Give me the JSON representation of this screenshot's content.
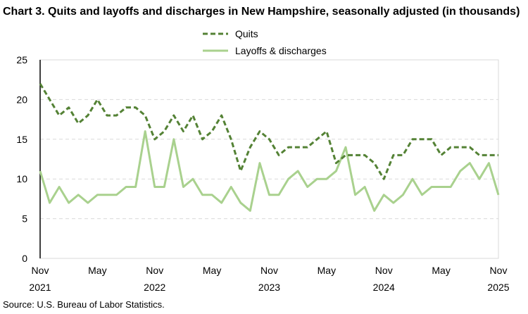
{
  "chart_data": {
    "type": "line",
    "title": "Chart 3. Quits and layoffs and discharges in New Hampshire, seasonally adjusted (in thousands)",
    "source": "Source: U.S. Bureau of Labor Statistics.",
    "x_start": "Nov 2021",
    "x_end": "Nov 2025",
    "x_tick_labels": [
      [
        "Nov",
        "2021"
      ],
      [
        "May",
        ""
      ],
      [
        "Nov",
        "2022"
      ],
      [
        "May",
        ""
      ],
      [
        "Nov",
        "2023"
      ],
      [
        "May",
        ""
      ],
      [
        "Nov",
        "2024"
      ],
      [
        "May",
        ""
      ],
      [
        "Nov",
        "2025"
      ]
    ],
    "ylim": [
      0,
      25
    ],
    "y_ticks": [
      0,
      5,
      10,
      15,
      20,
      25
    ],
    "grid": true,
    "legend_placement": "top-center",
    "series": [
      {
        "name": "Quits",
        "color": "#548235",
        "style": "dashed",
        "values": [
          22,
          20,
          18,
          19,
          17,
          18,
          20,
          18,
          18,
          19,
          19,
          18,
          15,
          16,
          18,
          16,
          18,
          15,
          16,
          18,
          15,
          11,
          14,
          16,
          15,
          13,
          14,
          14,
          14,
          15,
          16,
          12,
          13,
          13,
          13,
          12,
          10,
          13,
          13,
          15,
          15,
          15,
          13,
          14,
          14,
          14,
          13,
          13,
          13
        ]
      },
      {
        "name": "Layoffs & discharges",
        "color": "#a9d18e",
        "style": "solid",
        "values": [
          11,
          7,
          9,
          7,
          8,
          7,
          8,
          8,
          8,
          9,
          9,
          16,
          9,
          9,
          15,
          9,
          10,
          8,
          8,
          7,
          9,
          7,
          6,
          12,
          8,
          8,
          10,
          11,
          9,
          10,
          10,
          11,
          14,
          8,
          9,
          6,
          8,
          7,
          8,
          10,
          8,
          9,
          9,
          9,
          11,
          12,
          10,
          12,
          8
        ]
      }
    ]
  }
}
